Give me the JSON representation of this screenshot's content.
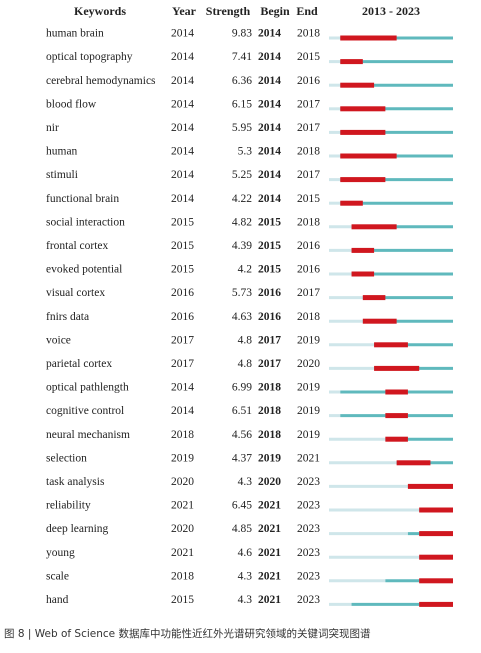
{
  "table": {
    "headers": [
      "Keywords",
      "Year",
      "Strength",
      "Begin",
      "End",
      "2013 - 2023"
    ],
    "rows": [
      [
        "human brain",
        2014,
        9.83,
        2014,
        2018
      ],
      [
        "optical topography",
        2014,
        7.41,
        2014,
        2015
      ],
      [
        "cerebral hemodynamics",
        2014,
        6.36,
        2014,
        2016
      ],
      [
        "blood flow",
        2014,
        6.15,
        2014,
        2017
      ],
      [
        "nir",
        2014,
        5.95,
        2014,
        2017
      ],
      [
        "human",
        2014,
        5.3,
        2014,
        2018
      ],
      [
        "stimuli",
        2014,
        5.25,
        2014,
        2017
      ],
      [
        "functional brain",
        2014,
        4.22,
        2014,
        2015
      ],
      [
        "social interaction",
        2015,
        4.82,
        2015,
        2018
      ],
      [
        "frontal cortex",
        2015,
        4.39,
        2015,
        2016
      ],
      [
        "evoked potential",
        2015,
        4.2,
        2015,
        2016
      ],
      [
        "visual cortex",
        2016,
        5.73,
        2016,
        2017
      ],
      [
        "fnirs data",
        2016,
        4.63,
        2016,
        2018
      ],
      [
        "voice",
        2017,
        4.8,
        2017,
        2019
      ],
      [
        "parietal cortex",
        2017,
        4.8,
        2017,
        2020
      ],
      [
        "optical pathlength",
        2014,
        6.99,
        2018,
        2019
      ],
      [
        "cognitive control",
        2014,
        6.51,
        2018,
        2019
      ],
      [
        "neural mechanism",
        2018,
        4.56,
        2018,
        2019
      ],
      [
        "selection",
        2019,
        4.37,
        2019,
        2021
      ],
      [
        "task analysis",
        2020,
        4.3,
        2020,
        2023
      ],
      [
        "reliability",
        2021,
        6.45,
        2021,
        2023
      ],
      [
        "deep learning",
        2020,
        4.85,
        2021,
        2023
      ],
      [
        "young",
        2021,
        4.6,
        2021,
        2023
      ],
      [
        "scale",
        2018,
        4.3,
        2021,
        2023
      ],
      [
        "hand",
        2015,
        4.3,
        2021,
        2023
      ]
    ]
  },
  "caption": "图 8 | Web of Science 数据库中功能性近红外光谱研究领域的关键词突现图谱"
}
